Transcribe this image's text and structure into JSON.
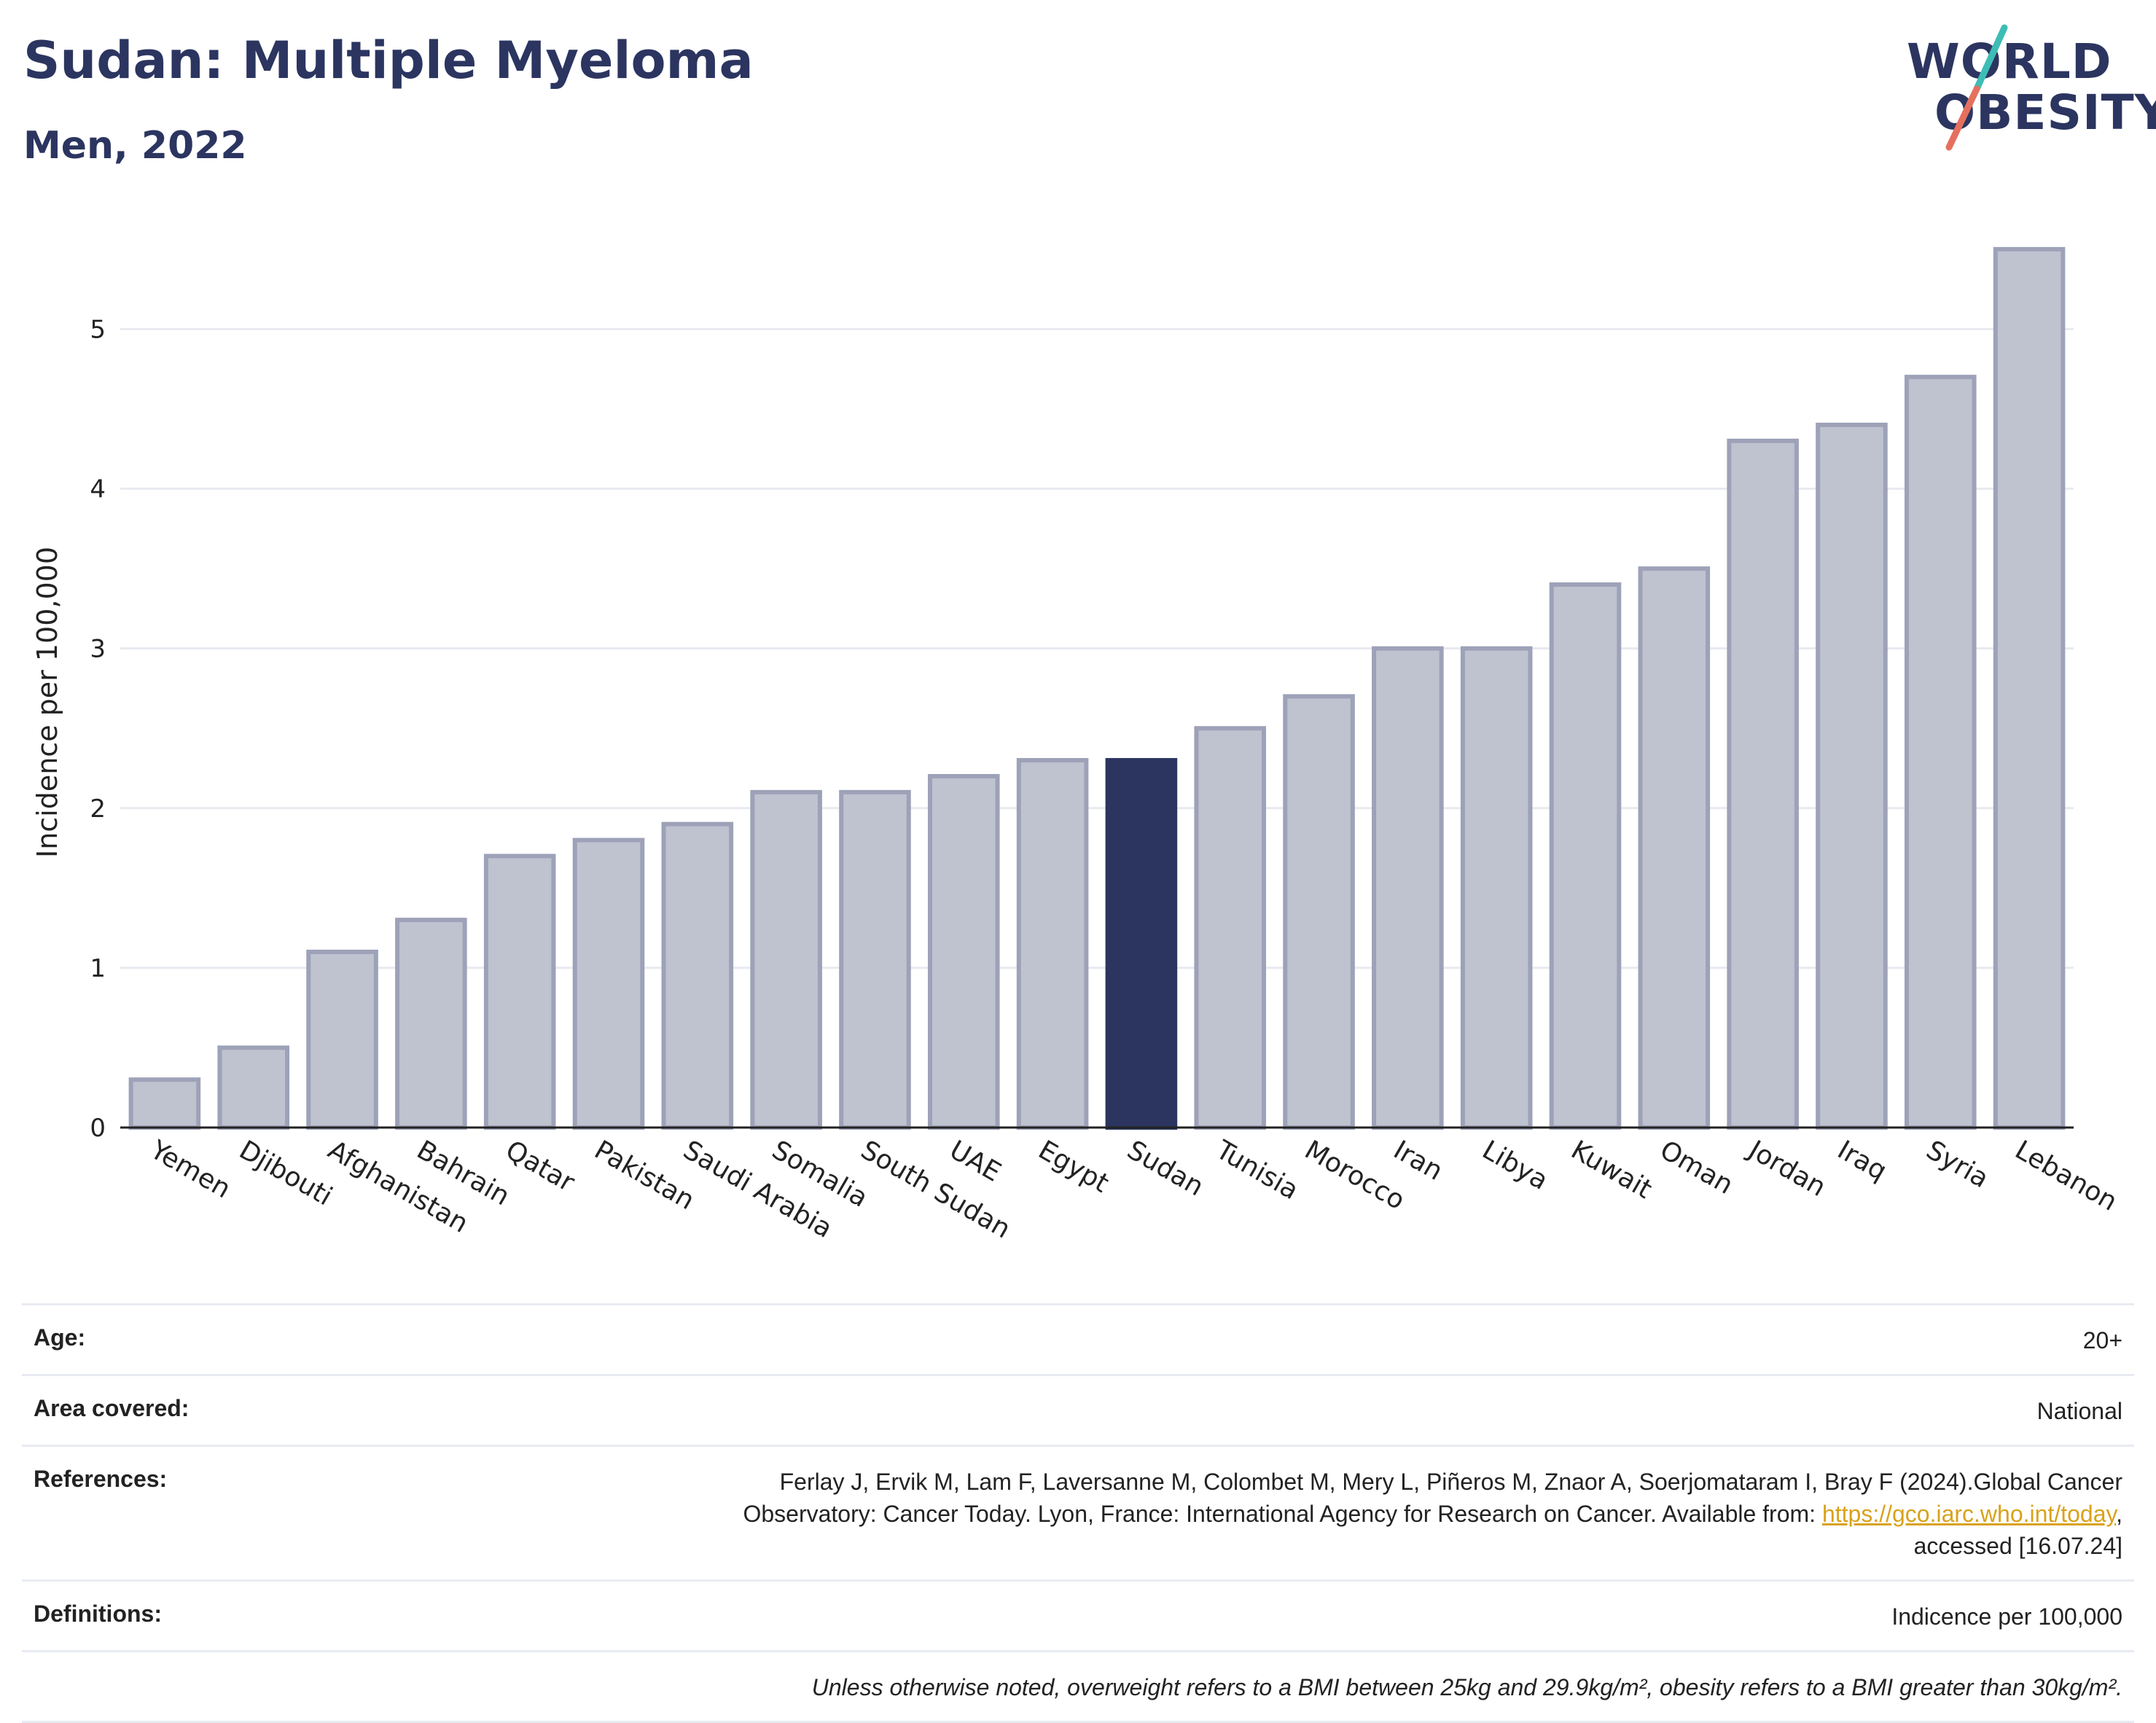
{
  "header": {
    "title": "Sudan: Multiple Myeloma",
    "subtitle": "Men, 2022"
  },
  "logo": {
    "line1": "WORLD",
    "line2": "OBESITY",
    "slash_colors": [
      "#3dbdb5",
      "#e5705f"
    ]
  },
  "chart_data": {
    "type": "bar",
    "title": "Sudan: Multiple Myeloma",
    "subtitle": "Men, 2022",
    "ylabel": "Incidence per 100,000",
    "xlabel": "",
    "ylim": [
      0,
      5.6
    ],
    "yticks": [
      0,
      1,
      2,
      3,
      4,
      5
    ],
    "grid": true,
    "highlight": "Sudan",
    "colors": {
      "bar": "#bfc2cf",
      "bar_border": "#9da2b8",
      "highlight": "#2b3560"
    },
    "categories": [
      "Yemen",
      "Djibouti",
      "Afghanistan",
      "Bahrain",
      "Qatar",
      "Pakistan",
      "Saudi Arabia",
      "Somalia",
      "South Sudan",
      "UAE",
      "Egypt",
      "Sudan",
      "Tunisia",
      "Morocco",
      "Iran",
      "Libya",
      "Kuwait",
      "Oman",
      "Jordan",
      "Iraq",
      "Syria",
      "Lebanon"
    ],
    "values": [
      0.3,
      0.5,
      1.1,
      1.3,
      1.7,
      1.8,
      1.9,
      2.1,
      2.1,
      2.2,
      2.3,
      2.3,
      2.5,
      2.7,
      3.0,
      3.0,
      3.4,
      3.5,
      4.3,
      4.4,
      4.7,
      5.5
    ]
  },
  "info": {
    "age_label": "Age:",
    "age_value": "20+",
    "area_label": "Area covered:",
    "area_value": "National",
    "references_label": "References:",
    "references_line1": "Ferlay J, Ervik M, Lam F, Laversanne M, Colombet M, Mery L, Piñeros M, Znaor A, Soerjomataram I, Bray F (2024).Global Cancer",
    "references_line2": "Observatory: Cancer Today. Lyon, France: International Agency for Research on Cancer. Available from: ",
    "references_link": "https://gco.iarc.who.int/today",
    "references_line2_end": ",",
    "references_line3": "accessed [16.07.24]",
    "definitions_label": "Definitions:",
    "definitions_value": "Indicence per 100,000",
    "note": "Unless otherwise noted, overweight refers to a BMI between 25kg and 29.9kg/m², obesity refers to a BMI greater than 30kg/m²."
  }
}
